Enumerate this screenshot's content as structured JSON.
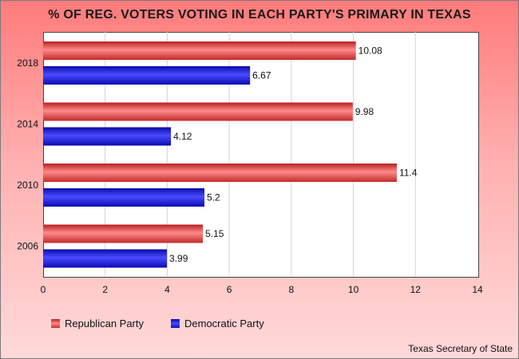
{
  "chart_data": {
    "type": "bar",
    "orientation": "horizontal",
    "title": "% OF REG. VOTERS VOTING IN EACH PARTY'S PRIMARY IN TEXAS",
    "categories": [
      "2018",
      "2014",
      "2010",
      "2006"
    ],
    "series": [
      {
        "name": "Republican Party",
        "color": "#e84545",
        "values": [
          10.08,
          9.98,
          11.4,
          5.15
        ]
      },
      {
        "name": "Democratic Party",
        "color": "#1a1aee",
        "values": [
          6.67,
          4.12,
          5.2,
          3.99
        ]
      }
    ],
    "xlim": [
      0,
      14
    ],
    "xticks": [
      "0",
      "2",
      "4",
      "6",
      "8",
      "10",
      "12",
      "14"
    ],
    "grid": true,
    "legend_position": "bottom-left",
    "source": "Texas Secretary of State"
  }
}
